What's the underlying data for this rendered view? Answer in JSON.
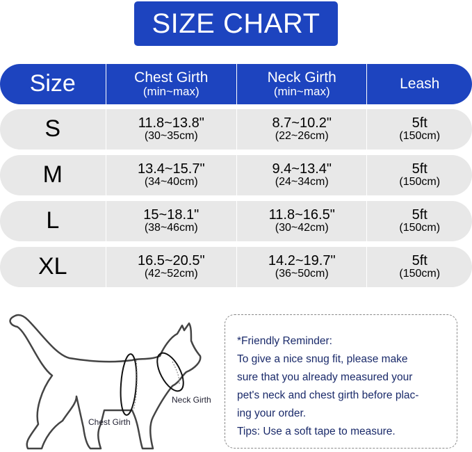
{
  "title": "SIZE CHART",
  "header": [
    {
      "main": "Size",
      "sub": ""
    },
    {
      "main": "Chest Girth",
      "sub": "(min~max)"
    },
    {
      "main": "Neck Girth",
      "sub": "(min~max)"
    },
    {
      "main": "Leash",
      "sub": ""
    }
  ],
  "rows": [
    {
      "size": "S",
      "chest": "11.8~13.8\"",
      "chest_cm": "(30~35cm)",
      "neck": "8.7~10.2\"",
      "neck_cm": "(22~26cm)",
      "leash": "5ft",
      "leash_cm": "(150cm)"
    },
    {
      "size": "M",
      "chest": "13.4~15.7\"",
      "chest_cm": "(34~40cm)",
      "neck": "9.4~13.4\"",
      "neck_cm": "(24~34cm)",
      "leash": "5ft",
      "leash_cm": "(150cm)"
    },
    {
      "size": "L",
      "chest": "15~18.1\"",
      "chest_cm": "(38~46cm)",
      "neck": "11.8~16.5\"",
      "neck_cm": "(30~42cm)",
      "leash": "5ft",
      "leash_cm": "(150cm)"
    },
    {
      "size": "XL",
      "chest": "16.5~20.5\"",
      "chest_cm": "(42~52cm)",
      "neck": "14.2~19.7\"",
      "neck_cm": "(36~50cm)",
      "leash": "5ft",
      "leash_cm": "(150cm)"
    }
  ],
  "diagram": {
    "neck_label": "Neck Girth",
    "chest_label": "Chest Girth"
  },
  "note": {
    "lines": [
      "*Friendly Reminder:",
      "To give a nice snug fit, please make",
      "sure that you already measured your",
      "pet's neck and chest girth before plac-",
      "ing your order.",
      "Tips: Use a soft tape to measure."
    ]
  },
  "colors": {
    "accent": "#1d44bf",
    "row_bg": "#e8e8e8",
    "note_text": "#1a2a6a"
  }
}
